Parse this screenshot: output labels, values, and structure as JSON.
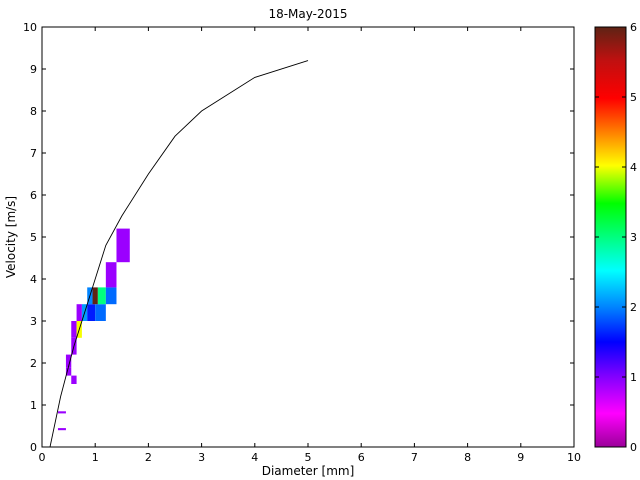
{
  "chart_data": {
    "type": "heatmap",
    "title": "18-May-2015",
    "xlabel": "Diameter [mm]",
    "ylabel": "Velocity [m/s]",
    "xlim": [
      0,
      10
    ],
    "ylim": [
      0,
      10
    ],
    "xticks": [
      "0",
      "1",
      "2",
      "3",
      "4",
      "5",
      "6",
      "7",
      "8",
      "9",
      "10"
    ],
    "yticks": [
      "0",
      "1",
      "2",
      "3",
      "4",
      "5",
      "6",
      "7",
      "8",
      "9",
      "10"
    ],
    "grid": false,
    "colorbar": {
      "range": [
        0,
        6
      ],
      "ticks": [
        "0",
        "1",
        "2",
        "3",
        "4",
        "5",
        "6"
      ],
      "colormap": "hsv"
    },
    "cells": [
      {
        "x0": 0.3,
        "x1": 0.45,
        "y0": 0.4,
        "y1": 0.45,
        "value": 0.9
      },
      {
        "x0": 0.3,
        "x1": 0.45,
        "y0": 0.8,
        "y1": 0.85,
        "value": 0.9
      },
      {
        "x0": 0.55,
        "x1": 0.65,
        "y0": 1.5,
        "y1": 1.7,
        "value": 0.9
      },
      {
        "x0": 0.45,
        "x1": 0.55,
        "y0": 1.7,
        "y1": 1.9,
        "value": 0.9
      },
      {
        "x0": 0.45,
        "x1": 0.55,
        "y0": 1.9,
        "y1": 2.2,
        "value": 0.9
      },
      {
        "x0": 0.55,
        "x1": 0.65,
        "y0": 2.2,
        "y1": 2.6,
        "value": 0.9
      },
      {
        "x0": 0.55,
        "x1": 0.65,
        "y0": 2.6,
        "y1": 3.0,
        "value": 0.9
      },
      {
        "x0": 0.65,
        "x1": 0.75,
        "y0": 2.6,
        "y1": 3.0,
        "value": 4.0
      },
      {
        "x0": 0.65,
        "x1": 0.75,
        "y0": 3.0,
        "y1": 3.4,
        "value": 0.9
      },
      {
        "x0": 0.75,
        "x1": 0.85,
        "y0": 3.0,
        "y1": 3.4,
        "value": 2.1
      },
      {
        "x0": 0.85,
        "x1": 1.0,
        "y0": 3.0,
        "y1": 3.4,
        "value": 1.6
      },
      {
        "x0": 1.0,
        "x1": 1.2,
        "y0": 3.0,
        "y1": 3.4,
        "value": 1.9
      },
      {
        "x0": 0.85,
        "x1": 0.95,
        "y0": 3.4,
        "y1": 3.8,
        "value": 2.0
      },
      {
        "x0": 0.95,
        "x1": 1.05,
        "y0": 3.4,
        "y1": 3.8,
        "value": 6.0
      },
      {
        "x0": 1.05,
        "x1": 1.2,
        "y0": 3.4,
        "y1": 3.8,
        "value": 3.0
      },
      {
        "x0": 1.2,
        "x1": 1.4,
        "y0": 3.4,
        "y1": 3.8,
        "value": 1.9
      },
      {
        "x0": 1.2,
        "x1": 1.4,
        "y0": 3.8,
        "y1": 4.4,
        "value": 0.9
      },
      {
        "x0": 1.4,
        "x1": 1.65,
        "y0": 4.4,
        "y1": 5.2,
        "value": 0.9
      }
    ],
    "series": [
      {
        "type": "line",
        "x": [
          0.15,
          0.35,
          0.6,
          0.8,
          1.0,
          1.2,
          1.5,
          2.0,
          2.5,
          3.0,
          4.0,
          5.0
        ],
        "y": [
          0.0,
          1.2,
          2.4,
          3.2,
          4.0,
          4.8,
          5.5,
          6.5,
          7.4,
          8.0,
          8.8,
          9.2
        ],
        "color": "#000000"
      }
    ]
  }
}
